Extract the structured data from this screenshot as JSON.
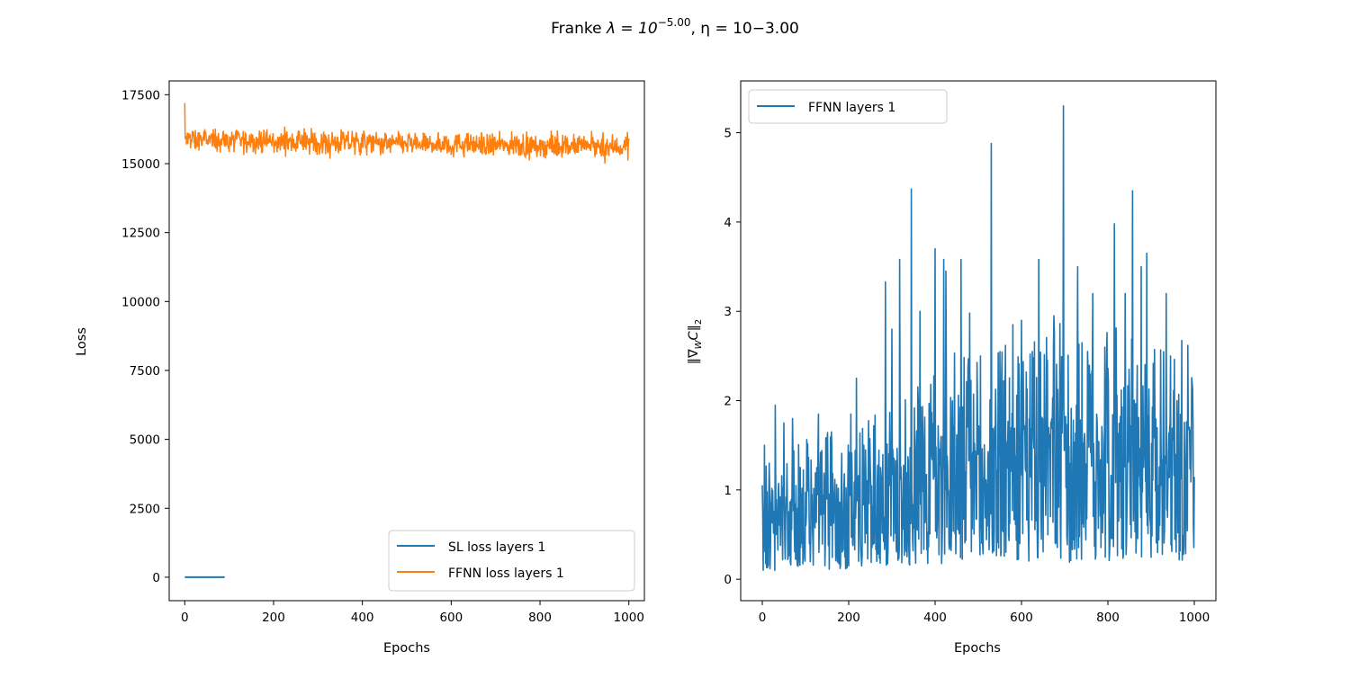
{
  "figure": {
    "title": "Franke λ = 10^{-5.00}, η = 10−3.00",
    "title_main": "Franke ",
    "title_lambda": "λ = 10",
    "title_lambda_exp": "−5.00",
    "title_eta": ", η = 10−3.00"
  },
  "chart_data": [
    {
      "type": "line",
      "xlabel": "Epochs",
      "ylabel": "Loss",
      "xlim": [
        -35,
        1035
      ],
      "ylim": [
        -850,
        18000
      ],
      "xticks": [
        0,
        200,
        400,
        600,
        800,
        1000
      ],
      "yticks": [
        0,
        2500,
        5000,
        7500,
        10000,
        12500,
        15000,
        17500
      ],
      "legend_location": "lower right",
      "grid": false,
      "series": [
        {
          "name": "SL loss layers 1",
          "color": "#1f77b4",
          "x": [
            0,
            90
          ],
          "values": [
            0,
            0
          ]
        },
        {
          "name": "FFNN loss layers 1",
          "color": "#ff7f0e",
          "x_range": [
            0,
            1000
          ],
          "start_value": 17200,
          "mean_value": 15850,
          "noise_range": [
            15000,
            16600
          ],
          "min_value": 14900,
          "max_value": 17200
        }
      ]
    },
    {
      "type": "line",
      "xlabel": "Epochs",
      "ylabel": "‖∇_W C‖₂",
      "ylabel_main": "‖∇",
      "ylabel_sub_w": "W",
      "ylabel_c": "C‖",
      "ylabel_sub_2": "2",
      "xlim": [
        -50,
        1050
      ],
      "ylim": [
        -0.24,
        5.58
      ],
      "xticks": [
        0,
        200,
        400,
        600,
        800,
        1000
      ],
      "yticks": [
        0,
        1,
        2,
        3,
        4,
        5
      ],
      "legend_location": "upper left",
      "grid": false,
      "series": [
        {
          "name": "FFNN layers 1",
          "color": "#1f77b4",
          "x_range": [
            0,
            1000
          ],
          "baseline_values": [
            [
              0,
              0.6
            ],
            [
              250,
              0.8
            ],
            [
              400,
              1.1
            ],
            [
              700,
              1.25
            ],
            [
              1000,
              1.2
            ]
          ],
          "peaks": [
            [
              5,
              1.5
            ],
            [
              30,
              1.95
            ],
            [
              50,
              1.75
            ],
            [
              70,
              1.8
            ],
            [
              130,
              1.85
            ],
            [
              160,
              1.65
            ],
            [
              205,
              1.85
            ],
            [
              218,
              2.25
            ],
            [
              235,
              1.5
            ],
            [
              250,
              1.25
            ],
            [
              285,
              3.33
            ],
            [
              300,
              2.8
            ],
            [
              318,
              3.58
            ],
            [
              345,
              4.37
            ],
            [
              365,
              3.0
            ],
            [
              400,
              3.7
            ],
            [
              420,
              3.58
            ],
            [
              425,
              3.45
            ],
            [
              460,
              3.58
            ],
            [
              480,
              2.98
            ],
            [
              530,
              4.88
            ],
            [
              550,
              2.55
            ],
            [
              580,
              2.85
            ],
            [
              600,
              2.9
            ],
            [
              625,
              2.55
            ],
            [
              640,
              3.58
            ],
            [
              660,
              2.45
            ],
            [
              675,
              2.95
            ],
            [
              697,
              5.3
            ],
            [
              730,
              3.5
            ],
            [
              765,
              3.2
            ],
            [
              793,
              2.6
            ],
            [
              815,
              3.98
            ],
            [
              840,
              3.2
            ],
            [
              857,
              4.35
            ],
            [
              877,
              3.5
            ],
            [
              890,
              3.65
            ],
            [
              935,
              3.2
            ],
            [
              945,
              2.5
            ],
            [
              960,
              2.0
            ],
            [
              985,
              2.62
            ],
            [
              995,
              2.2
            ]
          ]
        }
      ]
    }
  ]
}
